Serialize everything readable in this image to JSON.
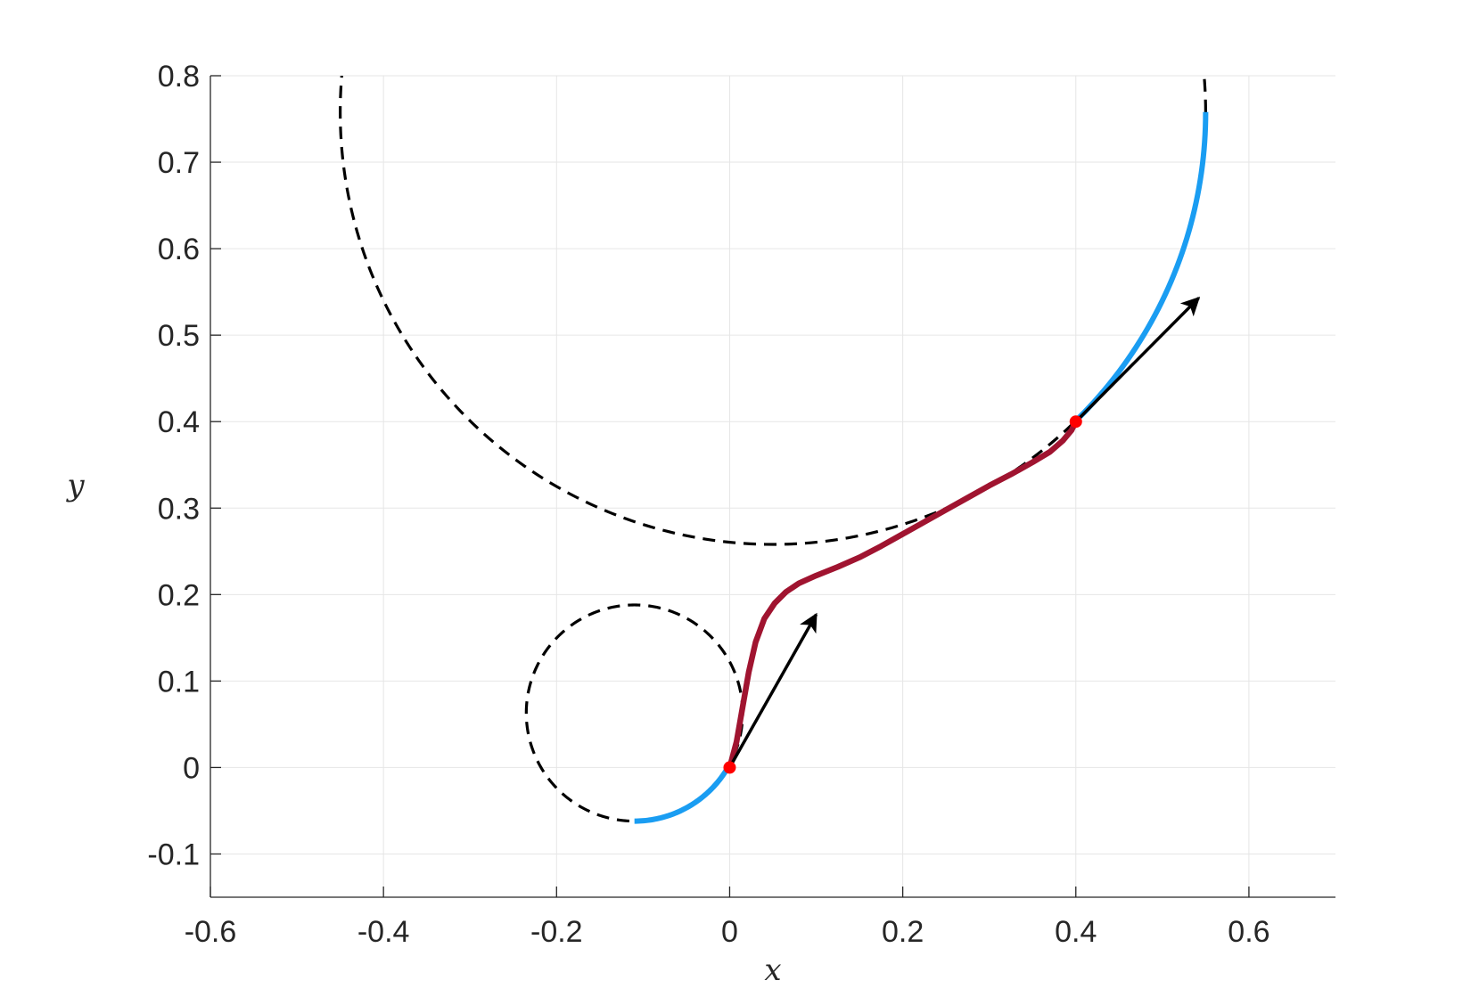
{
  "chart_data": {
    "type": "line",
    "title": "",
    "xlabel": "x",
    "ylabel": "y",
    "xlim": [
      -0.6,
      0.7
    ],
    "ylim": [
      -0.15,
      0.8
    ],
    "xticks": [
      -0.6,
      -0.4,
      -0.2,
      0,
      0.2,
      0.4,
      0.6
    ],
    "xtick_labels": [
      "-0.6",
      "-0.4",
      "-0.2",
      "0",
      "0.2",
      "0.4",
      "0.6"
    ],
    "yticks": [
      -0.1,
      0,
      0.1,
      0.2,
      0.3,
      0.4,
      0.5,
      0.6,
      0.7,
      0.8
    ],
    "ytick_labels": [
      "-0.1",
      "0",
      "0.1",
      "0.2",
      "0.3",
      "0.4",
      "0.5",
      "0.6",
      "0.7",
      "0.8"
    ],
    "grid": true,
    "legend": null,
    "colors": {
      "dashed_circle": "#000000",
      "blue_arc": "#1a9df2",
      "path": "#a01430",
      "point": "#ff0000",
      "arrow": "#000000"
    },
    "circles": [
      {
        "name": "small-circle",
        "center": [
          -0.11,
          0.063
        ],
        "radius": 0.125,
        "style": "dashed"
      },
      {
        "name": "large-circle",
        "center": [
          0.05,
          0.758
        ],
        "radius": 0.5,
        "style": "dashed",
        "clip_ymax": 0.8
      }
    ],
    "arcs": [
      {
        "name": "start-arc",
        "center": [
          -0.11,
          0.063
        ],
        "radius": 0.125,
        "start_deg": 270,
        "end_deg": 330,
        "color": "blue"
      },
      {
        "name": "end-arc",
        "center": [
          0.05,
          0.758
        ],
        "radius": 0.5,
        "start_deg": 315,
        "end_deg": 360,
        "color": "blue"
      }
    ],
    "path": {
      "name": "connecting-path",
      "x": [
        0,
        0.008,
        0.015,
        0.022,
        0.03,
        0.04,
        0.052,
        0.065,
        0.08,
        0.1,
        0.125,
        0.15,
        0.175,
        0.2,
        0.225,
        0.25,
        0.275,
        0.3,
        0.325,
        0.35,
        0.37,
        0.385,
        0.395,
        0.4
      ],
      "y": [
        0,
        0.03,
        0.07,
        0.11,
        0.145,
        0.172,
        0.19,
        0.203,
        0.213,
        0.222,
        0.232,
        0.243,
        0.256,
        0.27,
        0.284,
        0.298,
        0.312,
        0.326,
        0.339,
        0.353,
        0.365,
        0.378,
        0.39,
        0.4
      ]
    },
    "points": [
      {
        "name": "start-point",
        "x": 0,
        "y": 0
      },
      {
        "name": "end-point",
        "x": 0.4,
        "y": 0.4
      }
    ],
    "arrows": [
      {
        "name": "start-arrow",
        "from": [
          0,
          0
        ],
        "to": [
          0.1,
          0.177
        ]
      },
      {
        "name": "end-arrow",
        "from": [
          0.4,
          0.4
        ],
        "to": [
          0.542,
          0.543
        ]
      }
    ]
  }
}
